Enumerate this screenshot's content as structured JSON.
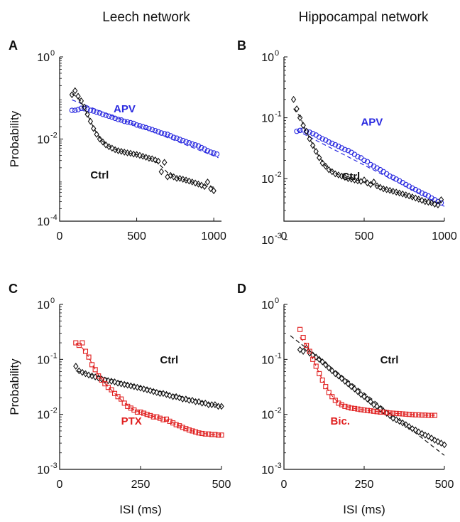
{
  "column_titles": [
    "Leech network",
    "Hippocampal network"
  ],
  "colors": {
    "ctrl": "#111111",
    "apv": "#2a2ae0",
    "drug": "#e02020"
  },
  "chart_data": [
    {
      "panel": "A",
      "type": "scatter",
      "yscale": "log",
      "ylabel": "Probability",
      "xlabel": "",
      "xlim": [
        0,
        1050
      ],
      "ylim": [
        0.0001,
        1
      ],
      "xticks": [
        0,
        500,
        1000
      ],
      "yticks": [
        {
          "v": 1,
          "m": "10",
          "e": "0"
        },
        {
          "v": 0.01,
          "m": "10",
          "e": "-2"
        },
        {
          "v": 0.0001,
          "m": "10",
          "e": "-4"
        }
      ],
      "series": [
        {
          "name": "APV",
          "color_key": "apv",
          "marker": "circle",
          "label_at": [
            350,
            0.045
          ],
          "x": [
            80,
            100,
            120,
            140,
            160,
            180,
            200,
            220,
            240,
            260,
            280,
            300,
            320,
            340,
            360,
            380,
            400,
            420,
            440,
            460,
            480,
            500,
            520,
            540,
            560,
            580,
            600,
            620,
            640,
            660,
            680,
            700,
            720,
            740,
            760,
            780,
            800,
            820,
            840,
            860,
            880,
            900,
            920,
            940,
            960,
            980,
            1000,
            1020
          ],
          "y": [
            0.05,
            0.05,
            0.052,
            0.056,
            0.055,
            0.053,
            0.05,
            0.048,
            0.045,
            0.043,
            0.04,
            0.038,
            0.036,
            0.034,
            0.032,
            0.03,
            0.029,
            0.027,
            0.026,
            0.025,
            0.024,
            0.022,
            0.021,
            0.02,
            0.019,
            0.018,
            0.017,
            0.016,
            0.015,
            0.014,
            0.0135,
            0.013,
            0.012,
            0.011,
            0.0105,
            0.0098,
            0.0092,
            0.0086,
            0.0081,
            0.0076,
            0.0072,
            0.0068,
            0.0062,
            0.0057,
            0.0052,
            0.0048,
            0.0046,
            0.0043
          ],
          "fit": [
            [
              80,
              0.09
            ],
            [
              1030,
              0.0035
            ]
          ]
        },
        {
          "name": "Ctrl",
          "color_key": "ctrl",
          "marker": "diamond",
          "label_at": [
            200,
            0.0011
          ],
          "x": [
            80,
            100,
            120,
            140,
            160,
            180,
            200,
            220,
            240,
            260,
            280,
            300,
            320,
            340,
            360,
            380,
            400,
            420,
            440,
            460,
            480,
            500,
            520,
            540,
            560,
            580,
            600,
            620,
            640,
            660,
            680,
            700,
            720,
            740,
            760,
            780,
            800,
            820,
            840,
            860,
            880,
            900,
            920,
            940,
            960,
            980,
            1000
          ],
          "y": [
            0.12,
            0.15,
            0.11,
            0.085,
            0.06,
            0.04,
            0.027,
            0.018,
            0.013,
            0.01,
            0.0085,
            0.0072,
            0.0065,
            0.006,
            0.0055,
            0.0052,
            0.005,
            0.0048,
            0.0046,
            0.0045,
            0.0043,
            0.0042,
            0.004,
            0.0038,
            0.0036,
            0.0034,
            0.0033,
            0.0031,
            0.0029,
            0.0016,
            0.0027,
            0.0012,
            0.0013,
            0.0012,
            0.0011,
            0.0011,
            0.00105,
            0.001,
            0.00095,
            0.0009,
            0.00085,
            0.0008,
            0.00075,
            0.0007,
            0.0009,
            0.00062,
            0.00055
          ],
          "fit_curve": true
        }
      ]
    },
    {
      "panel": "B",
      "type": "scatter",
      "yscale": "log",
      "ylabel": "",
      "xlabel": "",
      "xlim": [
        0,
        1000
      ],
      "ylim": [
        0.002,
        1
      ],
      "xticks": [
        0,
        500,
        1000
      ],
      "yticks": [
        {
          "v": 1,
          "m": "10",
          "e": "0"
        },
        {
          "v": 0.1,
          "m": "10",
          "e": "-1"
        },
        {
          "v": 0.01,
          "m": "10",
          "e": "-2"
        },
        {
          "v": 0.001,
          "m": "10",
          "e": "-3"
        }
      ],
      "series": [
        {
          "name": "APV",
          "color_key": "apv",
          "marker": "circle",
          "label_at": [
            480,
            0.075
          ],
          "x": [
            80,
            100,
            120,
            140,
            160,
            180,
            200,
            220,
            240,
            260,
            280,
            300,
            320,
            340,
            360,
            380,
            400,
            420,
            440,
            460,
            480,
            500,
            520,
            540,
            560,
            580,
            600,
            620,
            640,
            660,
            680,
            700,
            720,
            740,
            760,
            780,
            800,
            820,
            840,
            860,
            880,
            900,
            920,
            940,
            960,
            980
          ],
          "y": [
            0.06,
            0.062,
            0.063,
            0.06,
            0.058,
            0.055,
            0.052,
            0.048,
            0.045,
            0.043,
            0.04,
            0.038,
            0.036,
            0.034,
            0.032,
            0.03,
            0.029,
            0.027,
            0.025,
            0.023,
            0.022,
            0.02,
            0.019,
            0.017,
            0.016,
            0.015,
            0.014,
            0.013,
            0.012,
            0.011,
            0.0105,
            0.0098,
            0.0092,
            0.0086,
            0.008,
            0.0075,
            0.007,
            0.0066,
            0.0062,
            0.0058,
            0.0055,
            0.0052,
            0.0048,
            0.0045,
            0.0042,
            0.004
          ],
          "fit": [
            [
              80,
              0.062
            ],
            [
              1000,
              0.0035
            ]
          ]
        },
        {
          "name": "Ctrl",
          "color_key": "ctrl",
          "marker": "diamond",
          "label_at": [
            360,
            0.0095
          ],
          "x": [
            60,
            80,
            100,
            120,
            140,
            160,
            180,
            200,
            220,
            240,
            260,
            280,
            300,
            320,
            340,
            360,
            380,
            400,
            420,
            440,
            460,
            480,
            500,
            520,
            540,
            560,
            580,
            600,
            620,
            640,
            660,
            680,
            700,
            720,
            740,
            760,
            780,
            800,
            820,
            840,
            860,
            880,
            900,
            920,
            940,
            960,
            980
          ],
          "y": [
            0.2,
            0.14,
            0.1,
            0.075,
            0.06,
            0.045,
            0.035,
            0.028,
            0.022,
            0.018,
            0.016,
            0.014,
            0.013,
            0.012,
            0.0115,
            0.011,
            0.0105,
            0.01,
            0.0098,
            0.0095,
            0.0092,
            0.009,
            0.0095,
            0.0085,
            0.008,
            0.0088,
            0.0076,
            0.0072,
            0.0068,
            0.0066,
            0.0064,
            0.0062,
            0.006,
            0.0058,
            0.0056,
            0.0054,
            0.0052,
            0.005,
            0.0048,
            0.0046,
            0.0044,
            0.0042,
            0.0041,
            0.004,
            0.0038,
            0.0037,
            0.0045
          ],
          "fit_curve": true
        }
      ]
    },
    {
      "panel": "C",
      "type": "scatter",
      "yscale": "log",
      "ylabel": "Probability",
      "xlabel": "ISI (ms)",
      "xlim": [
        0,
        500
      ],
      "ylim": [
        0.001,
        1
      ],
      "xticks": [
        0,
        250,
        500
      ],
      "yticks": [
        {
          "v": 1,
          "m": "10",
          "e": "0"
        },
        {
          "v": 0.1,
          "m": "10",
          "e": "-1"
        },
        {
          "v": 0.01,
          "m": "10",
          "e": "-2"
        },
        {
          "v": 0.001,
          "m": "10",
          "e": "-3"
        }
      ],
      "series": [
        {
          "name": "Ctrl",
          "color_key": "ctrl",
          "marker": "diamond",
          "label_at": [
            310,
            0.085
          ],
          "x": [
            50,
            60,
            70,
            80,
            90,
            100,
            110,
            120,
            130,
            140,
            150,
            160,
            170,
            180,
            190,
            200,
            210,
            220,
            230,
            240,
            250,
            260,
            270,
            280,
            290,
            300,
            310,
            320,
            330,
            340,
            350,
            360,
            370,
            380,
            390,
            400,
            410,
            420,
            430,
            440,
            450,
            460,
            470,
            480,
            490,
            500
          ],
          "y": [
            0.075,
            0.062,
            0.058,
            0.055,
            0.052,
            0.05,
            0.048,
            0.046,
            0.044,
            0.042,
            0.041,
            0.04,
            0.039,
            0.037,
            0.036,
            0.035,
            0.034,
            0.033,
            0.032,
            0.031,
            0.03,
            0.029,
            0.028,
            0.027,
            0.026,
            0.025,
            0.024,
            0.024,
            0.023,
            0.022,
            0.021,
            0.021,
            0.02,
            0.019,
            0.019,
            0.018,
            0.018,
            0.017,
            0.017,
            0.016,
            0.016,
            0.015,
            0.015,
            0.015,
            0.014,
            0.014
          ],
          "fit": [
            [
              50,
              0.062
            ],
            [
              500,
              0.014
            ]
          ]
        },
        {
          "name": "PTX",
          "color_key": "drug",
          "marker": "square",
          "label_at": [
            190,
            0.0065
          ],
          "x": [
            50,
            60,
            70,
            80,
            90,
            100,
            110,
            120,
            130,
            140,
            150,
            160,
            170,
            180,
            190,
            200,
            210,
            220,
            230,
            240,
            250,
            260,
            270,
            280,
            290,
            300,
            310,
            320,
            330,
            340,
            350,
            360,
            370,
            380,
            390,
            400,
            410,
            420,
            430,
            440,
            450,
            460,
            470,
            480,
            490,
            500
          ],
          "y": [
            0.2,
            0.18,
            0.2,
            0.14,
            0.11,
            0.08,
            0.065,
            0.05,
            0.042,
            0.036,
            0.031,
            0.028,
            0.024,
            0.021,
            0.019,
            0.016,
            0.014,
            0.013,
            0.012,
            0.011,
            0.011,
            0.0105,
            0.01,
            0.0095,
            0.009,
            0.009,
            0.0085,
            0.008,
            0.0082,
            0.0075,
            0.007,
            0.0065,
            0.0062,
            0.0058,
            0.0055,
            0.0052,
            0.005,
            0.0048,
            0.0046,
            0.0045,
            0.0044,
            0.0044,
            0.0043,
            0.0043,
            0.0042,
            0.0042
          ],
          "fit_curve": true
        }
      ]
    },
    {
      "panel": "D",
      "type": "scatter",
      "yscale": "log",
      "ylabel": "",
      "xlabel": "ISI (ms)",
      "xlim": [
        0,
        500
      ],
      "ylim": [
        0.001,
        1
      ],
      "xticks": [
        0,
        250,
        500
      ],
      "yticks": [
        {
          "v": 1,
          "m": "10",
          "e": "0"
        },
        {
          "v": 0.1,
          "m": "10",
          "e": "-1"
        },
        {
          "v": 0.01,
          "m": "10",
          "e": "-2"
        },
        {
          "v": 0.001,
          "m": "10",
          "e": "-3"
        }
      ],
      "series": [
        {
          "name": "Ctrl",
          "color_key": "ctrl",
          "marker": "diamond",
          "label_at": [
            300,
            0.085
          ],
          "x": [
            50,
            60,
            70,
            80,
            90,
            100,
            110,
            120,
            130,
            140,
            150,
            160,
            170,
            180,
            190,
            200,
            210,
            220,
            230,
            240,
            250,
            260,
            270,
            280,
            290,
            300,
            310,
            320,
            330,
            340,
            350,
            360,
            370,
            380,
            390,
            400,
            410,
            420,
            430,
            440,
            450,
            460,
            470,
            480,
            490,
            500
          ],
          "y": [
            0.15,
            0.14,
            0.16,
            0.13,
            0.12,
            0.11,
            0.1,
            0.09,
            0.08,
            0.07,
            0.062,
            0.055,
            0.05,
            0.045,
            0.04,
            0.036,
            0.032,
            0.029,
            0.026,
            0.023,
            0.021,
            0.019,
            0.017,
            0.015,
            0.014,
            0.0125,
            0.0115,
            0.0105,
            0.0095,
            0.0085,
            0.008,
            0.0075,
            0.007,
            0.0065,
            0.006,
            0.0055,
            0.0052,
            0.0048,
            0.0045,
            0.0042,
            0.004,
            0.0037,
            0.0034,
            0.0032,
            0.003,
            0.0028
          ],
          "fit": [
            [
              20,
              0.27
            ],
            [
              500,
              0.0018
            ]
          ]
        },
        {
          "name": "Bic.",
          "color_key": "drug",
          "marker": "square",
          "label_at": [
            145,
            0.0065
          ],
          "x": [
            50,
            60,
            70,
            80,
            90,
            100,
            110,
            120,
            130,
            140,
            150,
            160,
            170,
            180,
            190,
            200,
            210,
            220,
            230,
            240,
            250,
            260,
            270,
            280,
            290,
            300,
            310,
            320,
            330,
            340,
            350,
            360,
            370,
            380,
            390,
            400,
            410,
            420,
            430,
            440,
            450,
            460,
            470
          ],
          "y": [
            0.35,
            0.25,
            0.18,
            0.14,
            0.1,
            0.075,
            0.055,
            0.042,
            0.032,
            0.025,
            0.021,
            0.018,
            0.016,
            0.015,
            0.014,
            0.0135,
            0.013,
            0.0128,
            0.0125,
            0.0122,
            0.012,
            0.0118,
            0.0116,
            0.0114,
            0.0112,
            0.011,
            0.011,
            0.0108,
            0.0106,
            0.0105,
            0.0104,
            0.0103,
            0.0102,
            0.0101,
            0.01,
            0.0099,
            0.0098,
            0.0098,
            0.0097,
            0.0097,
            0.0096,
            0.0096,
            0.0096
          ],
          "fit_curve": true
        }
      ]
    }
  ]
}
